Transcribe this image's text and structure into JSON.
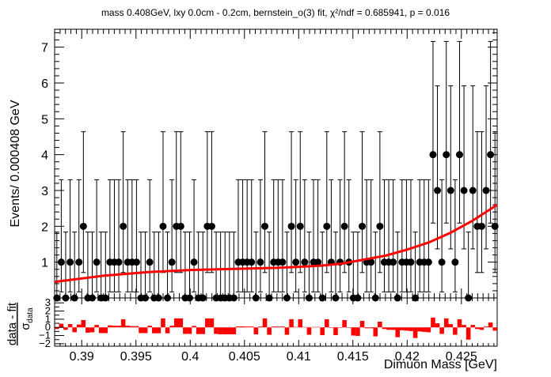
{
  "chart_data": [
    {
      "type": "scatter",
      "title": "mass 0.408GeV, lxy 0.0cm - 0.2cm, bernstein_o(3) fit, χ²/ndf = 0.685941, p = 0.016",
      "xlabel": "Dimuon Mass [GeV]",
      "ylabel": "Events/ 0.000408 GeV",
      "xlim": [
        0.3875,
        0.4283
      ],
      "ylim": [
        0,
        7.5
      ],
      "xticks": [
        0.39,
        0.395,
        0.4,
        0.405,
        0.41,
        0.415,
        0.42,
        0.425
      ],
      "xtick_labels": [
        "0.39",
        "0.395",
        "0.4",
        "0.405",
        "0.41",
        "0.415",
        "0.42",
        "0.425"
      ],
      "yticks": [
        1,
        2,
        3,
        4,
        5,
        6,
        7
      ],
      "ytick_labels": [
        "1",
        "2",
        "3",
        "4",
        "5",
        "6",
        "7"
      ],
      "bin_width": 0.000408,
      "series": [
        {
          "name": "data",
          "marker": "circle",
          "color": "#000000",
          "counts": [
            0,
            1,
            0,
            1,
            0,
            1,
            2,
            0,
            0,
            1,
            0,
            0,
            1,
            1,
            1,
            2,
            1,
            1,
            1,
            0,
            0,
            1,
            0,
            0,
            2,
            0,
            1,
            2,
            2,
            0,
            0,
            1,
            0,
            0,
            2,
            2,
            0,
            0,
            0,
            0,
            0,
            1,
            1,
            1,
            1,
            0,
            1,
            2,
            0,
            1,
            1,
            1,
            0,
            2,
            1,
            2,
            1,
            0,
            1,
            1,
            0,
            2,
            1,
            0,
            1,
            2,
            1,
            0,
            0,
            2,
            1,
            1,
            0,
            2,
            1,
            1,
            1,
            0,
            1,
            1,
            1,
            0,
            1,
            1,
            1,
            4,
            3,
            1,
            4,
            3,
            1,
            4,
            3,
            0,
            3,
            2,
            2,
            3,
            4,
            2
          ]
        },
        {
          "name": "fit",
          "type": "line",
          "color": "#ff0000",
          "x": [
            0.3875,
            0.392,
            0.396,
            0.4,
            0.404,
            0.408,
            0.412,
            0.414,
            0.416,
            0.418,
            0.42,
            0.422,
            0.424,
            0.426,
            0.4283
          ],
          "y": [
            0.45,
            0.62,
            0.72,
            0.78,
            0.81,
            0.84,
            0.9,
            0.96,
            1.07,
            1.18,
            1.35,
            1.55,
            1.82,
            2.15,
            2.6
          ]
        }
      ]
    },
    {
      "type": "bar",
      "ylabel": "data - fit / σ_data",
      "ylabel_main": "data - fit",
      "ylabel_sub": "σ",
      "ylabel_subscript": "data",
      "xlim": [
        0.3875,
        0.4283
      ],
      "ylim": [
        -2.3,
        3.6
      ],
      "yticks": [
        -2,
        -1,
        0,
        1,
        2,
        3
      ],
      "ytick_labels": [
        "−2",
        "−1",
        "0",
        "1",
        "2",
        "3"
      ],
      "color": "#ff0000",
      "values": [
        -0.2,
        0.45,
        -0.3,
        0.4,
        -0.6,
        0.35,
        0.9,
        -0.65,
        -0.6,
        0.3,
        -0.7,
        -0.7,
        0.25,
        0.2,
        0.2,
        1,
        0.2,
        0.15,
        0.15,
        -0.7,
        -0.7,
        0.2,
        -0.72,
        -0.72,
        1.1,
        -0.72,
        0.2,
        1.1,
        1.1,
        -0.8,
        -0.8,
        0.18,
        -0.82,
        -0.82,
        1.1,
        1.1,
        -0.8,
        -0.85,
        -0.85,
        -0.85,
        -0.85,
        0.12,
        0.12,
        0.1,
        0.1,
        -0.85,
        0.1,
        1.1,
        -0.9,
        0.1,
        0.1,
        0.1,
        -0.9,
        1,
        0.05,
        1,
        0.05,
        -0.9,
        0.05,
        0.05,
        -0.95,
        1,
        0.02,
        -0.95,
        0,
        0.9,
        0,
        -1,
        -1.05,
        0.8,
        -0.1,
        -0.1,
        -1.1,
        0.7,
        -0.2,
        -0.3,
        -0.3,
        -1.2,
        -0.35,
        -0.4,
        -0.45,
        -1.3,
        -0.5,
        -0.55,
        -0.6,
        1.2,
        0.5,
        -0.8,
        1.1,
        0.4,
        -0.9,
        1,
        0.3,
        -1.5,
        0.3,
        -0.2,
        -0.3,
        0.1,
        0.6,
        -0.4
      ]
    }
  ]
}
